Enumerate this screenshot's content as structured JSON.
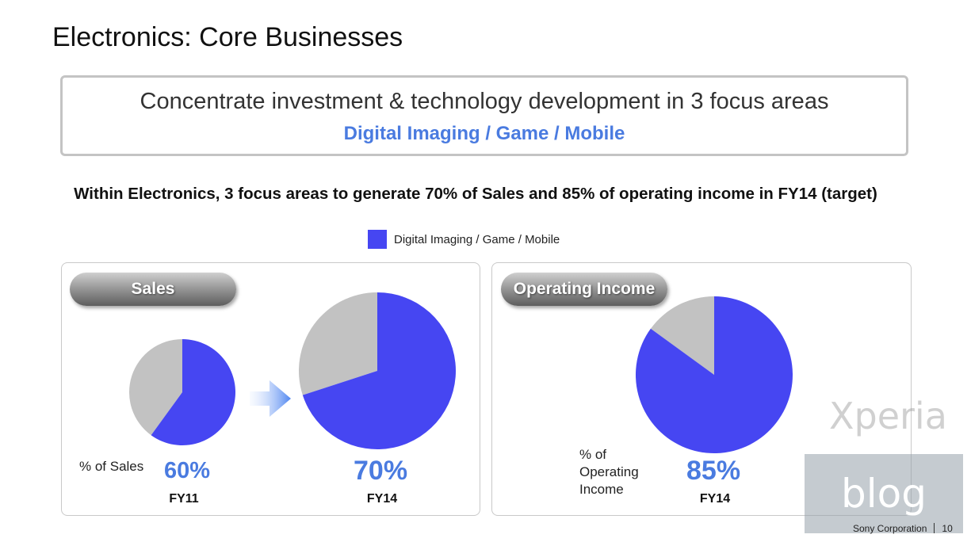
{
  "slide": {
    "title": "Electronics: Core Businesses",
    "focus_box": {
      "main_text": "Concentrate investment & technology development in 3 focus areas",
      "areas_text": "Digital Imaging / Game / Mobile"
    },
    "headline": "Within Electronics, 3 focus areas to generate 70% of Sales and 85% of operating income in FY14 (target)",
    "legend_label": "Digital Imaging / Game / Mobile",
    "sales_pill": "Sales",
    "oi_pill": "Operating Income",
    "sales_caption": "% of Sales",
    "oi_caption_lines": [
      "% of",
      "Operating",
      "Income"
    ],
    "watermark_xperia": "Xperia",
    "watermark_blog": "blog",
    "footer_company": "Sony Corporation",
    "footer_page": "10"
  },
  "colors": {
    "focus_series": "#4646f2",
    "other": "#c2c2c2",
    "accent_text": "#4a7be0"
  },
  "chart_data": [
    {
      "type": "pie",
      "panel": "Sales",
      "category": "FY11",
      "series": "Digital Imaging / Game / Mobile",
      "value_label": "60%",
      "value": 60
    },
    {
      "type": "pie",
      "panel": "Sales",
      "category": "FY14",
      "series": "Digital Imaging / Game / Mobile",
      "value_label": "70%",
      "value": 70
    },
    {
      "type": "pie",
      "panel": "Operating Income",
      "category": "FY14",
      "series": "Digital Imaging / Game / Mobile",
      "value_label": "85%",
      "value": 85
    }
  ]
}
